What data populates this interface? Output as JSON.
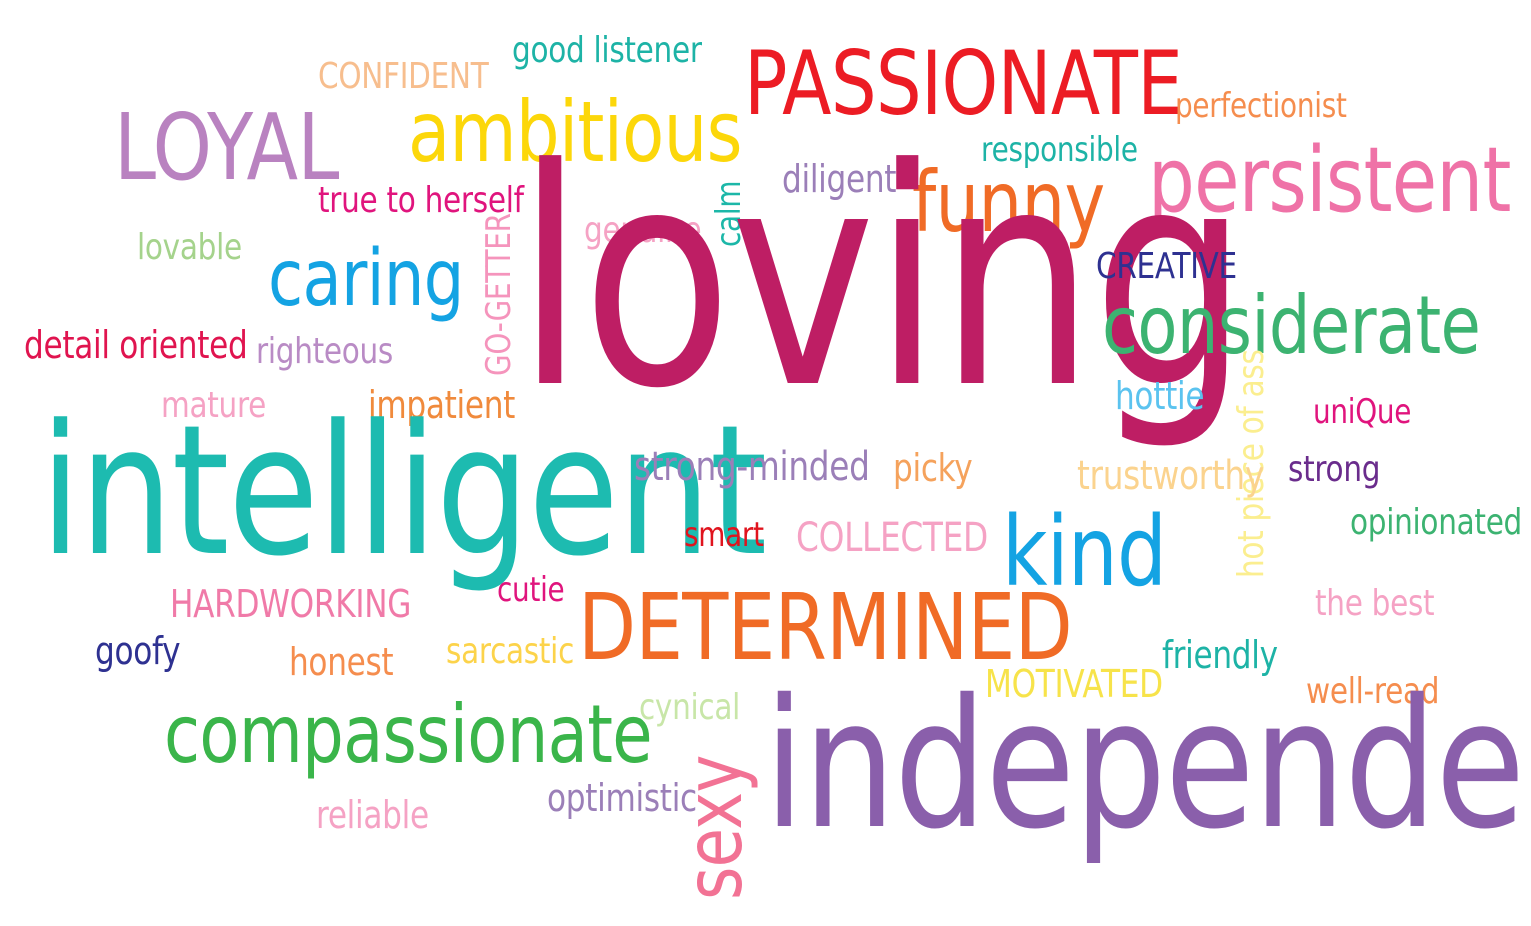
{
  "words": [
    {
      "key": "good-listener",
      "text": "good listener",
      "color": "#1db3a6"
    },
    {
      "key": "confident",
      "text": "CONFIDENT",
      "color": "#f7be8e"
    },
    {
      "key": "passionate",
      "text": "PASSIONATE",
      "color": "#ec1c24"
    },
    {
      "key": "perfectionist",
      "text": "perfectionist",
      "color": "#f58d4e"
    },
    {
      "key": "loyal",
      "text": "LOYAL",
      "color": "#b982c0"
    },
    {
      "key": "ambitious",
      "text": "ambitious",
      "color": "#fcd70a"
    },
    {
      "key": "responsible",
      "text": "responsible",
      "color": "#1db3a6"
    },
    {
      "key": "diligent",
      "text": "diligent",
      "color": "#9b7fb8"
    },
    {
      "key": "persistent",
      "text": "persistent",
      "color": "#ef72a7"
    },
    {
      "key": "true-to-herself",
      "text": "true to herself",
      "color": "#e0147d"
    },
    {
      "key": "funny",
      "text": "funny",
      "color": "#f06b26"
    },
    {
      "key": "calm",
      "text": "calm",
      "color": "#1cb7a8"
    },
    {
      "key": "genuine",
      "text": "genuine",
      "color": "#f5a2c4"
    },
    {
      "key": "lovable",
      "text": "lovable",
      "color": "#a5d38c"
    },
    {
      "key": "caring",
      "text": "caring",
      "color": "#14a3e3"
    },
    {
      "key": "go-getter",
      "text": "GO-GETTER",
      "color": "#f594bc"
    },
    {
      "key": "loving",
      "text": "loving",
      "color": "#be1e64"
    },
    {
      "key": "creative",
      "text": "CREATIVE",
      "color": "#2e3191"
    },
    {
      "key": "considerate",
      "text": "considerate",
      "color": "#3cb371"
    },
    {
      "key": "detail-oriented",
      "text": "detail oriented",
      "color": "#e0144f"
    },
    {
      "key": "righteous",
      "text": "righteous",
      "color": "#b98bc5"
    },
    {
      "key": "mature",
      "text": "mature",
      "color": "#f5a2c4"
    },
    {
      "key": "impatient",
      "text": "impatient",
      "color": "#f08a3c"
    },
    {
      "key": "hottie",
      "text": "hottie",
      "color": "#5bc3ef"
    },
    {
      "key": "unique",
      "text": "uniQue",
      "color": "#e0147d"
    },
    {
      "key": "hot-piece-of-ass",
      "text": "hot piece of ass",
      "color": "#fbee8f"
    },
    {
      "key": "intelligent",
      "text": "intelligent",
      "color": "#1dbbb0"
    },
    {
      "key": "strong-minded",
      "text": "strong-minded",
      "color": "#9b7fb8"
    },
    {
      "key": "picky",
      "text": "picky",
      "color": "#f5a25c"
    },
    {
      "key": "trustworthy",
      "text": "trustworthy",
      "color": "#fbd38e"
    },
    {
      "key": "strong",
      "text": "strong",
      "color": "#6a2c8c"
    },
    {
      "key": "opinionated",
      "text": "opinionated",
      "color": "#3cb371"
    },
    {
      "key": "smart",
      "text": "smart",
      "color": "#e0141e"
    },
    {
      "key": "collected",
      "text": "COLLECTED",
      "color": "#f5a2c4"
    },
    {
      "key": "kind",
      "text": "kind",
      "color": "#14a3e3"
    },
    {
      "key": "cutie",
      "text": "cutie",
      "color": "#e0147d"
    },
    {
      "key": "hardworking",
      "text": "HARDWORKING",
      "color": "#f07aa8"
    },
    {
      "key": "determined",
      "text": "DETERMINED",
      "color": "#f06b26"
    },
    {
      "key": "the-best",
      "text": "the best",
      "color": "#f5a2c4"
    },
    {
      "key": "goofy",
      "text": "goofy",
      "color": "#2e3191"
    },
    {
      "key": "honest",
      "text": "honest",
      "color": "#f58d4e"
    },
    {
      "key": "sarcastic",
      "text": "sarcastic",
      "color": "#fcd34a"
    },
    {
      "key": "friendly",
      "text": "friendly",
      "color": "#1db3a6"
    },
    {
      "key": "motivated",
      "text": "MOTIVATED",
      "color": "#f7e34a"
    },
    {
      "key": "well-read",
      "text": "well-read",
      "color": "#f58d4e"
    },
    {
      "key": "cynical",
      "text": "cynical",
      "color": "#c8e6a8"
    },
    {
      "key": "compassionate",
      "text": "compassionate",
      "color": "#3ab54a"
    },
    {
      "key": "independent",
      "text": "independent",
      "color": "#8a5fab"
    },
    {
      "key": "sexy",
      "text": "sexy",
      "color": "#f27294"
    },
    {
      "key": "optimistic",
      "text": "optimistic",
      "color": "#9b7fb8"
    },
    {
      "key": "reliable",
      "text": "reliable",
      "color": "#f5a2c4"
    }
  ]
}
